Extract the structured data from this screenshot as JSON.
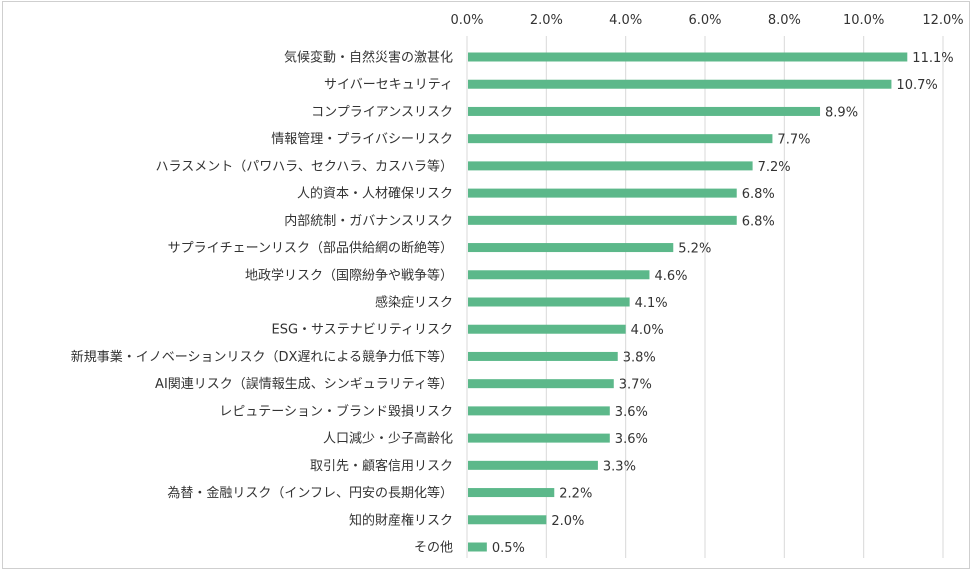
{
  "chart_data": {
    "type": "bar",
    "orientation": "horizontal",
    "title": "",
    "xlabel": "",
    "ylabel": "",
    "xlim": [
      0,
      12
    ],
    "x_ticks": [
      0,
      2,
      4,
      6,
      8,
      10,
      12
    ],
    "x_tick_labels": [
      "0.0%",
      "2.0%",
      "4.0%",
      "6.0%",
      "8.0%",
      "10.0%",
      "12.0%"
    ],
    "x_axis_position": "top",
    "grid": true,
    "legend": "none",
    "bar_color": "#5cb88a",
    "categories": [
      "気候変動・自然災害の激甚化",
      "サイバーセキュリティ",
      "コンプライアンスリスク",
      "情報管理・プライバシーリスク",
      "ハラスメント（パワハラ、セクハラ、カスハラ等）",
      "人的資本・人材確保リスク",
      "内部統制・ガバナンスリスク",
      "サプライチェーンリスク（部品供給網の断絶等）",
      "地政学リスク（国際紛争や戦争等）",
      "感染症リスク",
      "ESG・サステナビリティリスク",
      "新規事業・イノベーションリスク（DX遅れによる競争力低下等）",
      "AI関連リスク（誤情報生成、シンギュラリティ等）",
      "レピュテーション・ブランド毀損リスク",
      "人口減少・少子高齢化",
      "取引先・顧客信用リスク",
      "為替・金融リスク（インフレ、円安の長期化等）",
      "知的財産権リスク",
      "その他"
    ],
    "values": [
      11.1,
      10.7,
      8.9,
      7.7,
      7.2,
      6.8,
      6.8,
      5.2,
      4.6,
      4.1,
      4.0,
      3.8,
      3.7,
      3.6,
      3.6,
      3.3,
      2.2,
      2.0,
      0.5
    ],
    "value_labels": [
      "11.1%",
      "10.7%",
      "8.9%",
      "7.7%",
      "7.2%",
      "6.8%",
      "6.8%",
      "5.2%",
      "4.6%",
      "4.1%",
      "4.0%",
      "3.8%",
      "3.7%",
      "3.6%",
      "3.6%",
      "3.3%",
      "2.2%",
      "2.0%",
      "0.5%"
    ]
  }
}
